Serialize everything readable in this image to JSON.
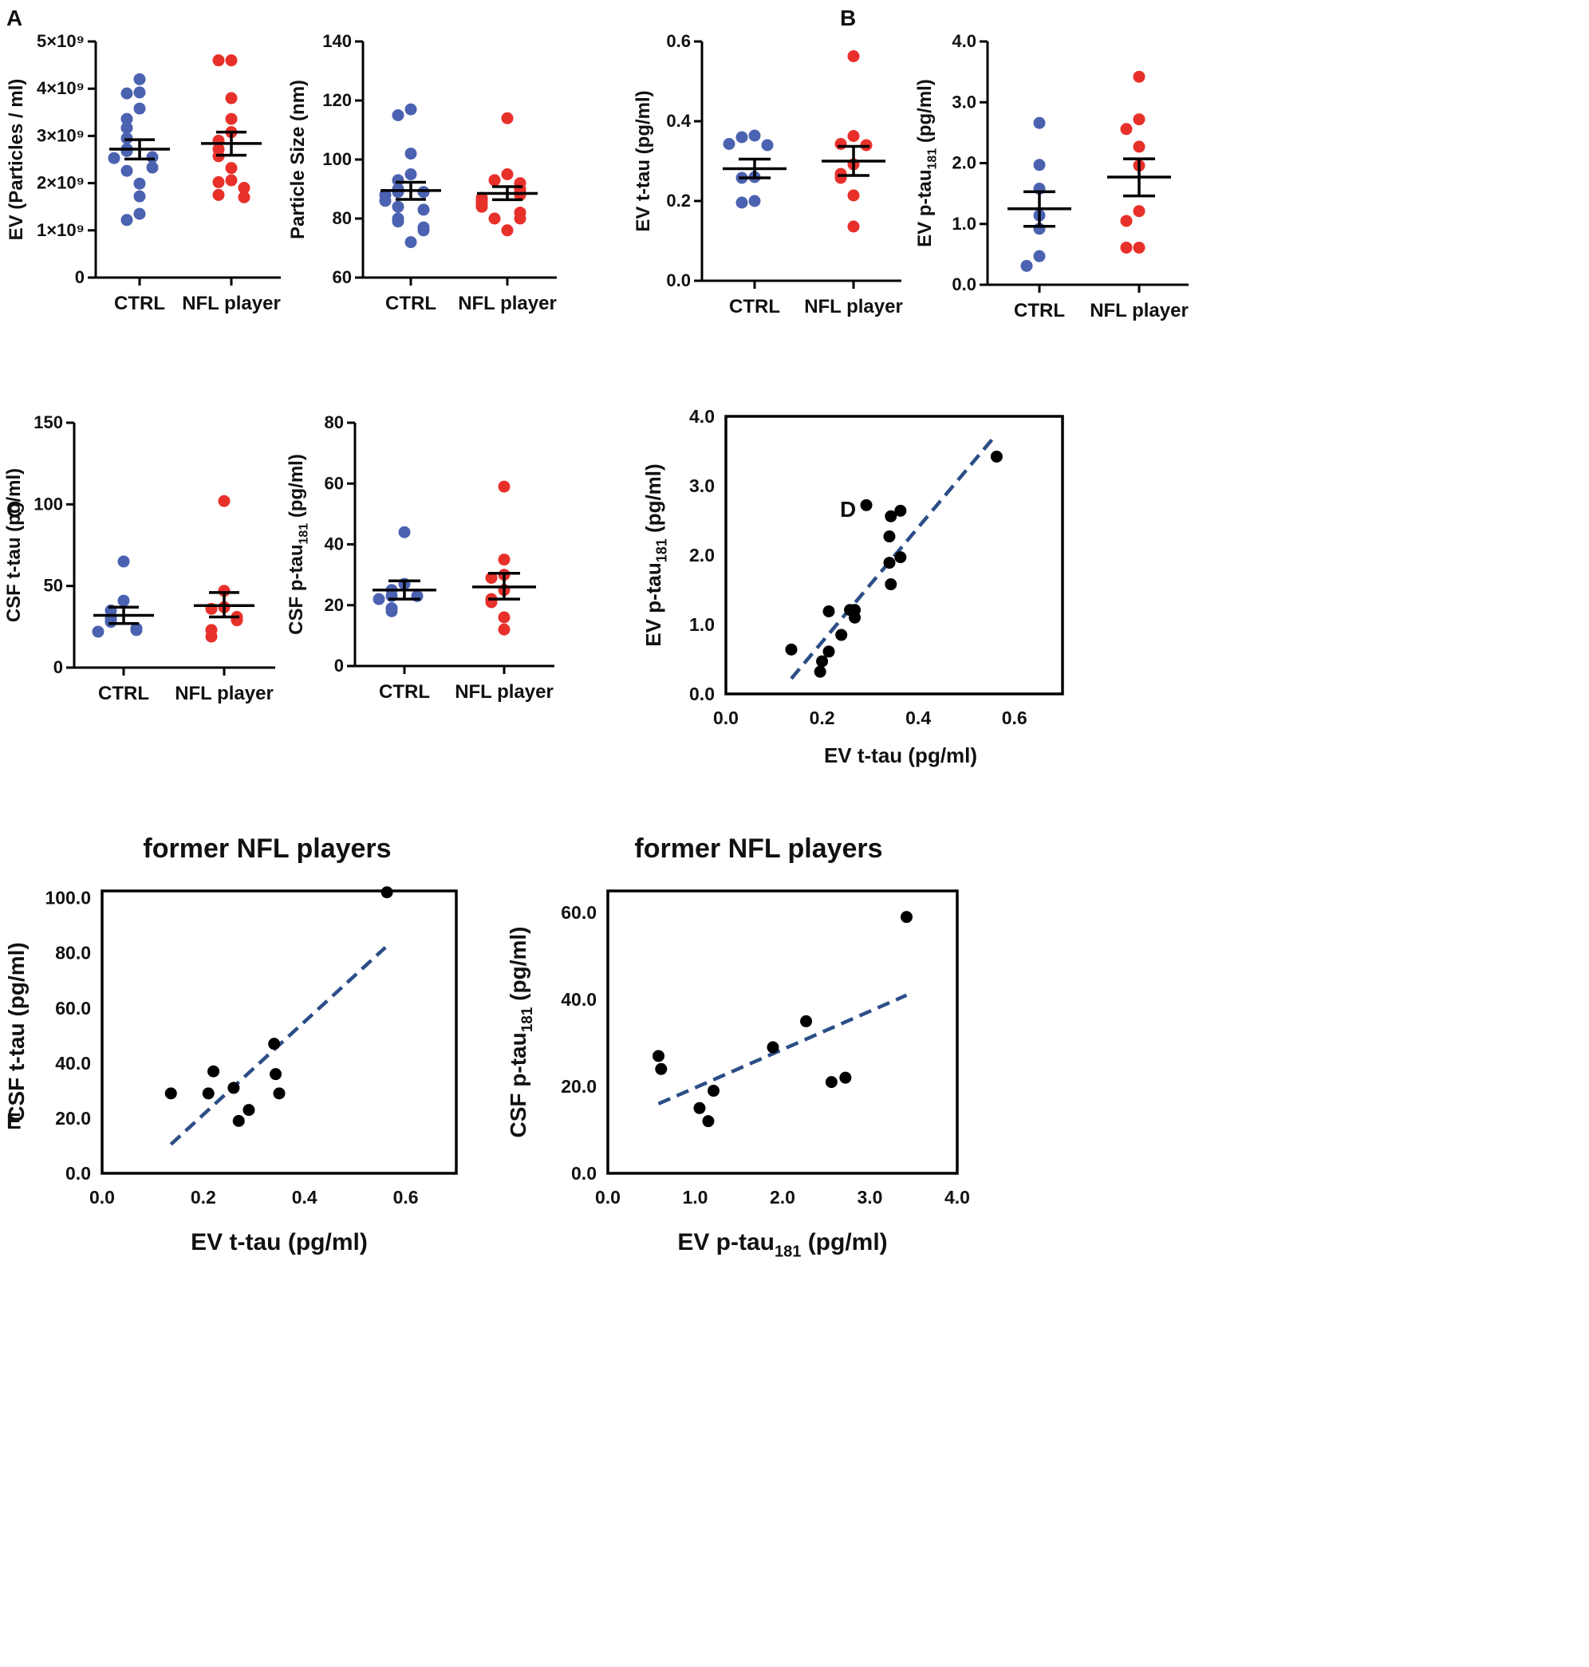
{
  "colors": {
    "ctrl": "#4a62b0",
    "nfl": "#e8302a",
    "scatter": "#000000",
    "fit": "#2b4e86"
  },
  "panel_letters": [
    "A",
    "B",
    "C",
    "D",
    "E"
  ],
  "chart_data": [
    {
      "id": "A1",
      "panel": "A",
      "type": "scatter",
      "title": "",
      "xlabel": "",
      "ylabel": "EV (Particles / ml)",
      "ylim": [
        0,
        5000000000
      ],
      "yticks": [
        0,
        1000000000,
        2000000000,
        3000000000,
        4000000000,
        5000000000
      ],
      "yticklabels": [
        "0",
        "1×10⁹",
        "2×10⁹",
        "3×10⁹",
        "4×10⁹",
        "5×10⁹"
      ],
      "categories": [
        "CTRL",
        "NFL player"
      ],
      "series": [
        {
          "name": "CTRL",
          "color": "#4a62b0",
          "values": [
            4200000000,
            3920000000,
            3900000000,
            3580000000,
            3360000000,
            3170000000,
            2950000000,
            2720000000,
            2680000000,
            2550000000,
            2530000000,
            2330000000,
            2260000000,
            1990000000,
            1720000000,
            1350000000,
            1220000000
          ],
          "mean": 2720000000,
          "sem_low": 2510000000,
          "sem_high": 2920000000
        },
        {
          "name": "NFL player",
          "color": "#e8302a",
          "values": [
            4600000000,
            4600000000,
            3800000000,
            3360000000,
            3080000000,
            2900000000,
            2720000000,
            2570000000,
            2320000000,
            2060000000,
            2020000000,
            1900000000,
            1750000000,
            1700000000
          ],
          "mean": 2840000000,
          "sem_low": 2590000000,
          "sem_high": 3080000000
        }
      ]
    },
    {
      "id": "A2",
      "panel": "A",
      "type": "scatter",
      "title": "",
      "xlabel": "",
      "ylabel": "Particle Size (nm)",
      "ylim": [
        60,
        140
      ],
      "yticks": [
        60,
        80,
        100,
        120,
        140
      ],
      "yticklabels": [
        "60",
        "80",
        "100",
        "120",
        "140"
      ],
      "categories": [
        "CTRL",
        "NFL player"
      ],
      "series": [
        {
          "name": "CTRL",
          "color": "#4a62b0",
          "values": [
            117,
            115,
            102,
            95,
            93,
            90,
            89,
            89,
            88,
            86,
            84,
            83,
            80,
            79,
            77,
            76,
            72
          ],
          "mean": 89.5,
          "sem_low": 86.5,
          "sem_high": 92.3
        },
        {
          "name": "NFL player",
          "color": "#e8302a",
          "values": [
            114,
            95,
            93,
            92,
            90,
            89,
            88,
            87,
            86,
            85,
            84,
            82,
            80,
            80,
            76
          ],
          "mean": 88.5,
          "sem_low": 86.4,
          "sem_high": 90.8
        }
      ]
    },
    {
      "id": "B1",
      "panel": "B",
      "type": "scatter",
      "title": "",
      "xlabel": "",
      "ylabel": "EV t-tau (pg/ml)",
      "ylim": [
        0,
        0.6
      ],
      "yticks": [
        0,
        0.2,
        0.4,
        0.6
      ],
      "yticklabels": [
        "0.0",
        "0.2",
        "0.4",
        "0.6"
      ],
      "categories": [
        "CTRL",
        "NFL player"
      ],
      "series": [
        {
          "name": "CTRL",
          "color": "#4a62b0",
          "values": [
            0.364,
            0.36,
            0.34,
            0.343,
            0.26,
            0.258,
            0.2,
            0.196
          ],
          "mean": 0.281,
          "sem_low": 0.258,
          "sem_high": 0.305
        },
        {
          "name": "NFL player",
          "color": "#e8302a",
          "values": [
            0.563,
            0.363,
            0.343,
            0.34,
            0.292,
            0.268,
            0.258,
            0.214,
            0.136
          ],
          "mean": 0.3,
          "sem_low": 0.264,
          "sem_high": 0.337
        }
      ]
    },
    {
      "id": "B2",
      "panel": "B",
      "type": "scatter",
      "title": "",
      "xlabel": "",
      "ylabel": "EV p-tau181 (pg/ml)",
      "ylim": [
        0,
        4.0
      ],
      "yticks": [
        0,
        1,
        2,
        3,
        4
      ],
      "yticklabels": [
        "0.0",
        "1.0",
        "2.0",
        "3.0",
        "4.0"
      ],
      "categories": [
        "CTRL",
        "NFL player"
      ],
      "series": [
        {
          "name": "CTRL",
          "color": "#4a62b0",
          "values": [
            2.66,
            1.97,
            1.58,
            1.14,
            0.92,
            0.47,
            0.31
          ],
          "mean": 1.25,
          "sem_low": 0.96,
          "sem_high": 1.53
        },
        {
          "name": "NFL player",
          "color": "#e8302a",
          "values": [
            3.42,
            2.72,
            2.56,
            2.27,
            1.96,
            1.21,
            1.05,
            0.61,
            0.61
          ],
          "mean": 1.77,
          "sem_low": 1.46,
          "sem_high": 2.07
        }
      ]
    },
    {
      "id": "C1",
      "panel": "C",
      "type": "scatter",
      "title": "",
      "xlabel": "",
      "ylabel": "CSF t-tau (pg/ml)",
      "ylim": [
        0,
        150
      ],
      "yticks": [
        0,
        50,
        100,
        150
      ],
      "yticklabels": [
        "0",
        "50",
        "100",
        "150"
      ],
      "categories": [
        "CTRL",
        "NFL player"
      ],
      "series": [
        {
          "name": "CTRL",
          "color": "#4a62b0",
          "values": [
            65,
            41,
            35,
            30,
            28,
            24,
            23,
            22
          ],
          "mean": 32,
          "sem_low": 27,
          "sem_high": 37
        },
        {
          "name": "NFL player",
          "color": "#e8302a",
          "values": [
            102,
            47,
            37,
            36,
            31,
            30,
            29,
            23,
            19
          ],
          "mean": 38,
          "sem_low": 31,
          "sem_high": 46
        }
      ]
    },
    {
      "id": "C2",
      "panel": "C",
      "type": "scatter",
      "title": "",
      "xlabel": "",
      "ylabel": "CSF p-tau181 (pg/ml)",
      "ylim": [
        0,
        80
      ],
      "yticks": [
        0,
        20,
        40,
        60,
        80
      ],
      "yticklabels": [
        "0",
        "20",
        "40",
        "60",
        "80"
      ],
      "categories": [
        "CTRL",
        "NFL player"
      ],
      "series": [
        {
          "name": "CTRL",
          "color": "#4a62b0",
          "values": [
            44,
            27,
            25,
            23,
            23,
            22,
            19,
            18
          ],
          "mean": 25,
          "sem_low": 22,
          "sem_high": 28
        },
        {
          "name": "NFL player",
          "color": "#e8302a",
          "values": [
            59,
            35,
            30,
            29,
            25,
            22,
            21,
            16,
            12
          ],
          "mean": 26,
          "sem_low": 22,
          "sem_high": 30.5
        }
      ]
    },
    {
      "id": "D",
      "panel": "D",
      "type": "scatter",
      "title": "",
      "xlabel": "EV t-tau (pg/ml)",
      "ylabel": "EV p-tau181 (pg/ml)",
      "xlim": [
        0,
        0.7
      ],
      "ylim": [
        0,
        4.0
      ],
      "xticks": [
        0,
        0.2,
        0.4,
        0.6
      ],
      "xticklabels": [
        "0.0",
        "0.2",
        "0.4",
        "0.6"
      ],
      "yticks": [
        0,
        1,
        2,
        3,
        4
      ],
      "yticklabels": [
        "0.0",
        "1.0",
        "2.0",
        "3.0",
        "4.0"
      ],
      "x": [
        0.563,
        0.292,
        0.363,
        0.343,
        0.34,
        0.343,
        0.363,
        0.34,
        0.268,
        0.214,
        0.258,
        0.268,
        0.136,
        0.2,
        0.214,
        0.196,
        0.24
      ],
      "y": [
        3.42,
        2.72,
        2.64,
        2.56,
        2.27,
        1.58,
        1.97,
        1.89,
        1.21,
        1.19,
        1.21,
        1.1,
        0.64,
        0.47,
        0.61,
        0.32,
        0.85
      ],
      "fit": {
        "x": [
          0.136,
          0.56
        ],
        "y": [
          0.22,
          3.72
        ]
      }
    },
    {
      "id": "E1",
      "panel": "E",
      "type": "scatter",
      "title": "former NFL players",
      "xlabel": "EV t-tau (pg/ml)",
      "ylabel": "CSF t-tau (pg/ml)",
      "xlim": [
        0,
        0.7
      ],
      "ylim": [
        0,
        102.5
      ],
      "xticks": [
        0,
        0.2,
        0.4,
        0.6
      ],
      "xticklabels": [
        "0.0",
        "0.2",
        "0.4",
        "0.6"
      ],
      "yticks": [
        0,
        20,
        40,
        60,
        80,
        100
      ],
      "yticklabels": [
        "0.0",
        "20.0",
        "40.0",
        "60.0",
        "80.0",
        "100.0"
      ],
      "x": [
        0.563,
        0.34,
        0.343,
        0.35,
        0.22,
        0.21,
        0.136,
        0.26,
        0.29,
        0.27
      ],
      "y": [
        102,
        47,
        36,
        29,
        37,
        29,
        29,
        31,
        23,
        19
      ],
      "fit": {
        "x": [
          0.136,
          0.56
        ],
        "y": [
          10.5,
          82
        ]
      }
    },
    {
      "id": "E2",
      "panel": "E",
      "type": "scatter",
      "title": "former NFL players",
      "xlabel": "EV p-tau181 (pg/ml)",
      "ylabel": "CSF p-tau181 (pg/ml)",
      "xlim": [
        0,
        4.0
      ],
      "ylim": [
        0,
        65
      ],
      "xticks": [
        0,
        1,
        2,
        3,
        4
      ],
      "xticklabels": [
        "0.0",
        "1.0",
        "2.0",
        "3.0",
        "4.0"
      ],
      "yticks": [
        0,
        20,
        40,
        60
      ],
      "yticklabels": [
        "0.0",
        "20.0",
        "40.0",
        "60.0"
      ],
      "x": [
        3.42,
        2.27,
        1.89,
        2.72,
        2.56,
        0.58,
        0.61,
        1.21,
        1.05,
        1.15
      ],
      "y": [
        59,
        35,
        29,
        22,
        21,
        27,
        24,
        19,
        15,
        12
      ],
      "fit": {
        "x": [
          0.58,
          3.42
        ],
        "y": [
          16,
          41
        ]
      }
    }
  ]
}
